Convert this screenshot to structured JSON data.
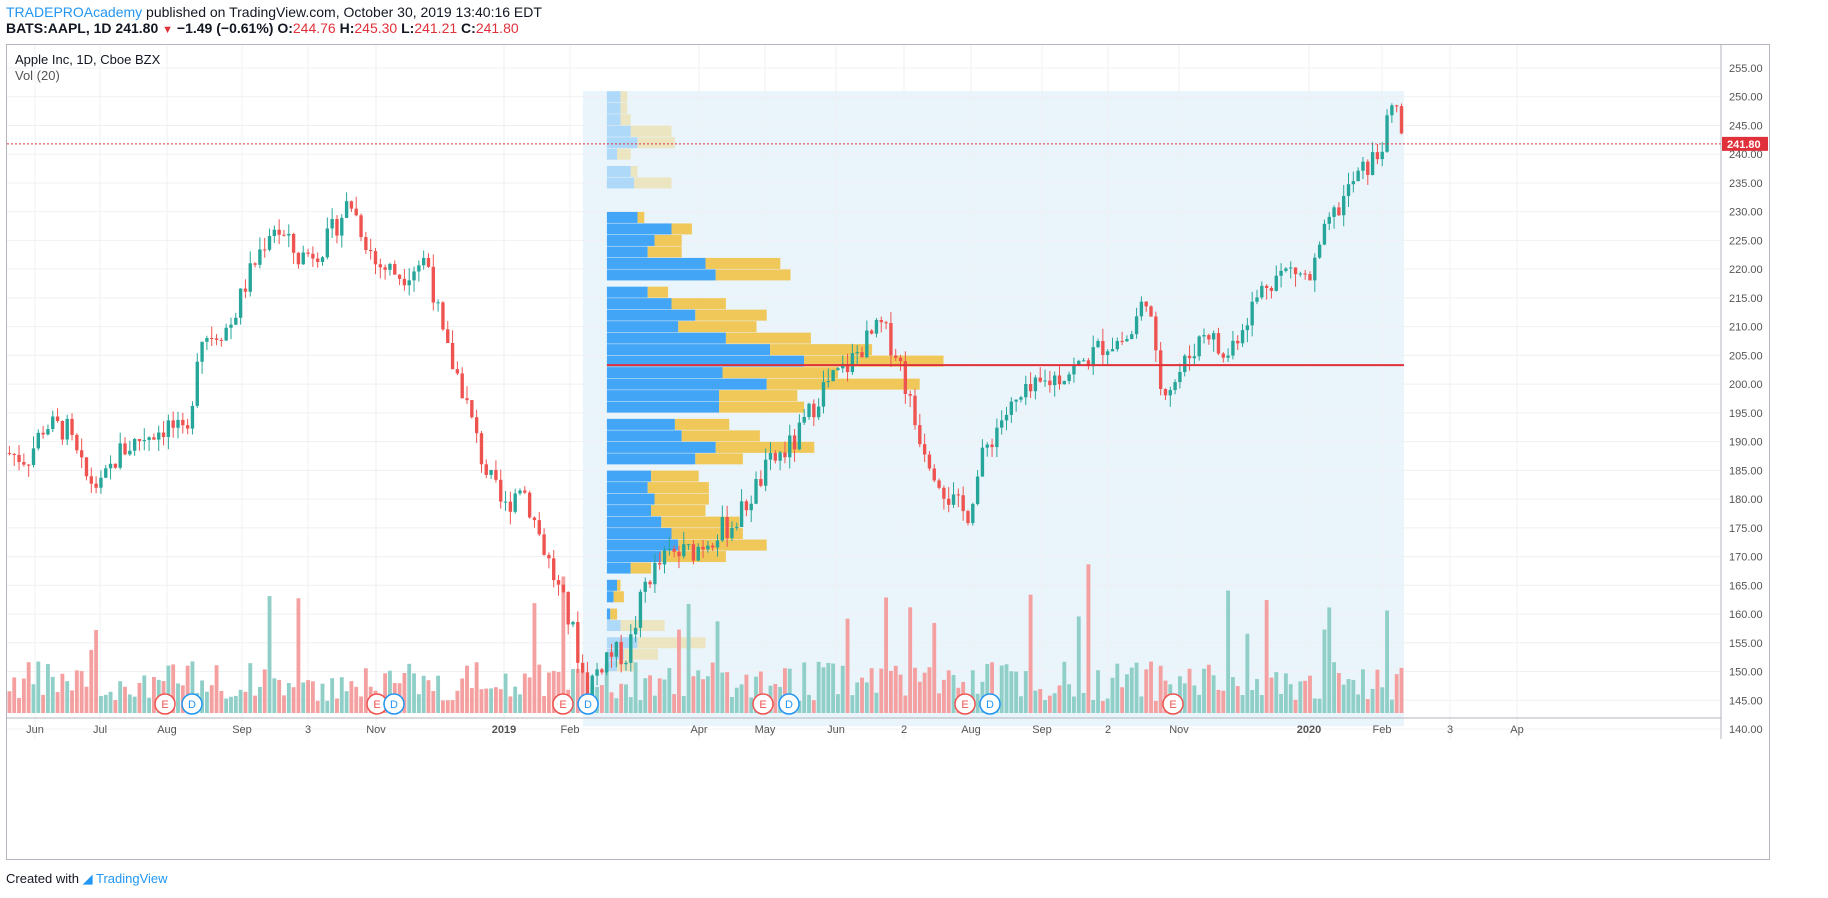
{
  "header": {
    "publisher": "TRADEPROAcademy",
    "published_text": "published on TradingView.com, October 30, 2019 13:40:16 EDT",
    "symbol": "BATS:AAPL, 1D",
    "last": "241.80",
    "change": "−1.49 (−0.61%)",
    "o_label": "O:",
    "o": "244.76",
    "h_label": "H:",
    "h": "245.30",
    "l_label": "L:",
    "l": "241.21",
    "c_label": "C:",
    "c": "241.80"
  },
  "legend": {
    "title": "Apple Inc, 1D, Cboe BZX",
    "indicator": "Vol (20)"
  },
  "footer": {
    "created_with": "Created with",
    "brand": "TradingView"
  },
  "colors": {
    "up": "#26a69a",
    "down": "#ef5350",
    "vol_up": "#8fcfc8",
    "vol_down": "#f4a0a0",
    "vp_buy": "#42a5f5",
    "vp_sell": "#f0c85a",
    "price_line": "#e0303a",
    "poc_line": "#e0303a",
    "vp_region": "#eaf4fb"
  },
  "chart_data": {
    "type": "candlestick",
    "symbol": "AAPL",
    "interval": "1D",
    "y_axis": {
      "ticks": [
        140,
        145,
        150,
        155,
        160,
        165,
        170,
        175,
        180,
        185,
        190,
        195,
        200,
        205,
        210,
        215,
        220,
        225,
        230,
        235,
        240,
        245,
        250,
        255
      ],
      "ylim": [
        138,
        256
      ]
    },
    "x_axis": {
      "labels": [
        "Jun",
        "Jul",
        "Aug",
        "Sep",
        "3",
        "Nov",
        "2019",
        "Feb",
        "Apr",
        "May",
        "Jun",
        "2",
        "Aug",
        "Sep",
        "2",
        "Nov",
        "2020",
        "Feb",
        "3",
        "Ap"
      ]
    },
    "last_price": 241.8,
    "poc_level": 203.3,
    "price_path": [
      {
        "t": 0,
        "p": 188
      },
      {
        "t": 0.012,
        "p": 187
      },
      {
        "t": 0.022,
        "p": 193
      },
      {
        "t": 0.035,
        "p": 192
      },
      {
        "t": 0.045,
        "p": 184
      },
      {
        "t": 0.055,
        "p": 182
      },
      {
        "t": 0.065,
        "p": 188
      },
      {
        "t": 0.08,
        "p": 191
      },
      {
        "t": 0.095,
        "p": 193
      },
      {
        "t": 0.105,
        "p": 190
      },
      {
        "t": 0.112,
        "p": 208
      },
      {
        "t": 0.13,
        "p": 210
      },
      {
        "t": 0.14,
        "p": 218
      },
      {
        "t": 0.155,
        "p": 228
      },
      {
        "t": 0.17,
        "p": 222
      },
      {
        "t": 0.185,
        "p": 224
      },
      {
        "t": 0.2,
        "p": 232
      },
      {
        "t": 0.215,
        "p": 221
      },
      {
        "t": 0.23,
        "p": 219
      },
      {
        "t": 0.245,
        "p": 222
      },
      {
        "t": 0.255,
        "p": 207
      },
      {
        "t": 0.265,
        "p": 200
      },
      {
        "t": 0.278,
        "p": 186
      },
      {
        "t": 0.29,
        "p": 178
      },
      {
        "t": 0.3,
        "p": 183
      },
      {
        "t": 0.315,
        "p": 170
      },
      {
        "t": 0.33,
        "p": 157
      },
      {
        "t": 0.338,
        "p": 147
      },
      {
        "t": 0.35,
        "p": 153
      },
      {
        "t": 0.362,
        "p": 153
      },
      {
        "t": 0.373,
        "p": 166
      },
      {
        "t": 0.385,
        "p": 170
      },
      {
        "t": 0.4,
        "p": 171
      },
      {
        "t": 0.413,
        "p": 174
      },
      {
        "t": 0.425,
        "p": 176
      },
      {
        "t": 0.445,
        "p": 186
      },
      {
        "t": 0.46,
        "p": 190
      },
      {
        "t": 0.475,
        "p": 199
      },
      {
        "t": 0.49,
        "p": 203
      },
      {
        "t": 0.5,
        "p": 207
      },
      {
        "t": 0.51,
        "p": 210
      },
      {
        "t": 0.52,
        "p": 205
      },
      {
        "t": 0.53,
        "p": 193
      },
      {
        "t": 0.54,
        "p": 186
      },
      {
        "t": 0.55,
        "p": 180
      },
      {
        "t": 0.56,
        "p": 177
      },
      {
        "t": 0.57,
        "p": 188
      },
      {
        "t": 0.58,
        "p": 194
      },
      {
        "t": 0.595,
        "p": 198
      },
      {
        "t": 0.61,
        "p": 201
      },
      {
        "t": 0.625,
        "p": 203
      },
      {
        "t": 0.64,
        "p": 207
      },
      {
        "t": 0.655,
        "p": 208
      },
      {
        "t": 0.665,
        "p": 216
      },
      {
        "t": 0.672,
        "p": 200
      },
      {
        "t": 0.68,
        "p": 200
      },
      {
        "t": 0.69,
        "p": 205
      },
      {
        "t": 0.7,
        "p": 210
      },
      {
        "t": 0.71,
        "p": 204
      },
      {
        "t": 0.72,
        "p": 210
      },
      {
        "t": 0.735,
        "p": 218
      },
      {
        "t": 0.75,
        "p": 220
      },
      {
        "t": 0.76,
        "p": 218
      },
      {
        "t": 0.77,
        "p": 227
      },
      {
        "t": 0.785,
        "p": 235
      },
      {
        "t": 0.8,
        "p": 240
      },
      {
        "t": 0.81,
        "p": 249
      },
      {
        "t": 0.815,
        "p": 241.8
      }
    ],
    "earnings_markers": [
      {
        "label": "E",
        "t": 0.113
      },
      {
        "label": "D",
        "t": 0.13
      },
      {
        "label": "E",
        "t": 0.26
      },
      {
        "label": "D",
        "t": 0.273
      },
      {
        "label": "E",
        "t": 0.39
      },
      {
        "label": "D",
        "t": 0.408
      },
      {
        "label": "E",
        "t": 0.53
      },
      {
        "label": "D",
        "t": 0.547
      },
      {
        "label": "E",
        "t": 0.67
      },
      {
        "label": "D",
        "t": 0.687
      },
      {
        "label": "E",
        "t": 0.815
      }
    ],
    "volume_profile": {
      "rows": [
        {
          "price": 151,
          "buy": 0.03,
          "sell": 0.05,
          "faded": true
        },
        {
          "price": 153,
          "buy": 0.05,
          "sell": 0.1,
          "faded": true
        },
        {
          "price": 155,
          "buy": 0.09,
          "sell": 0.2,
          "faded": true
        },
        {
          "price": 158,
          "buy": 0.04,
          "sell": 0.13,
          "faded": true
        },
        {
          "price": 160,
          "buy": 0.01,
          "sell": 0.02,
          "faded": false
        },
        {
          "price": 163,
          "buy": 0.02,
          "sell": 0.03,
          "faded": false
        },
        {
          "price": 165,
          "buy": 0.03,
          "sell": 0.01,
          "faded": false
        },
        {
          "price": 168,
          "buy": 0.07,
          "sell": 0.06,
          "faded": false
        },
        {
          "price": 170,
          "buy": 0.16,
          "sell": 0.19,
          "faded": false
        },
        {
          "price": 172,
          "buy": 0.21,
          "sell": 0.26,
          "faded": false
        },
        {
          "price": 174,
          "buy": 0.19,
          "sell": 0.21,
          "faded": false
        },
        {
          "price": 176,
          "buy": 0.16,
          "sell": 0.23,
          "faded": false
        },
        {
          "price": 178,
          "buy": 0.13,
          "sell": 0.16,
          "faded": false
        },
        {
          "price": 180,
          "buy": 0.14,
          "sell": 0.16,
          "faded": false
        },
        {
          "price": 182,
          "buy": 0.12,
          "sell": 0.18,
          "faded": false
        },
        {
          "price": 184,
          "buy": 0.13,
          "sell": 0.14,
          "faded": false
        },
        {
          "price": 187,
          "buy": 0.26,
          "sell": 0.14,
          "faded": false
        },
        {
          "price": 189,
          "buy": 0.32,
          "sell": 0.29,
          "faded": false
        },
        {
          "price": 191,
          "buy": 0.22,
          "sell": 0.23,
          "faded": false
        },
        {
          "price": 193,
          "buy": 0.2,
          "sell": 0.16,
          "faded": false
        },
        {
          "price": 196,
          "buy": 0.33,
          "sell": 0.25,
          "faded": false
        },
        {
          "price": 198,
          "buy": 0.33,
          "sell": 0.23,
          "faded": false
        },
        {
          "price": 200,
          "buy": 0.47,
          "sell": 0.45,
          "faded": false
        },
        {
          "price": 202,
          "buy": 0.34,
          "sell": 0.34,
          "faded": false
        },
        {
          "price": 204,
          "buy": 0.58,
          "sell": 0.41,
          "faded": false
        },
        {
          "price": 206,
          "buy": 0.48,
          "sell": 0.3,
          "faded": false
        },
        {
          "price": 208,
          "buy": 0.35,
          "sell": 0.25,
          "faded": false
        },
        {
          "price": 210,
          "buy": 0.21,
          "sell": 0.23,
          "faded": false
        },
        {
          "price": 212,
          "buy": 0.26,
          "sell": 0.21,
          "faded": false
        },
        {
          "price": 214,
          "buy": 0.19,
          "sell": 0.16,
          "faded": false
        },
        {
          "price": 216,
          "buy": 0.12,
          "sell": 0.06,
          "faded": false
        },
        {
          "price": 219,
          "buy": 0.32,
          "sell": 0.22,
          "faded": false
        },
        {
          "price": 221,
          "buy": 0.29,
          "sell": 0.22,
          "faded": false
        },
        {
          "price": 223,
          "buy": 0.12,
          "sell": 0.1,
          "faded": false
        },
        {
          "price": 225,
          "buy": 0.14,
          "sell": 0.08,
          "faded": false
        },
        {
          "price": 227,
          "buy": 0.19,
          "sell": 0.06,
          "faded": false
        },
        {
          "price": 229,
          "buy": 0.09,
          "sell": 0.02,
          "faded": false
        },
        {
          "price": 235,
          "buy": 0.08,
          "sell": 0.11,
          "faded": true
        },
        {
          "price": 237,
          "buy": 0.07,
          "sell": 0.02,
          "faded": true
        },
        {
          "price": 240,
          "buy": 0.03,
          "sell": 0.04,
          "faded": true
        },
        {
          "price": 242,
          "buy": 0.09,
          "sell": 0.11,
          "faded": true
        },
        {
          "price": 244,
          "buy": 0.07,
          "sell": 0.12,
          "faded": true
        },
        {
          "price": 246,
          "buy": 0.04,
          "sell": 0.03,
          "faded": true
        },
        {
          "price": 248,
          "buy": 0.04,
          "sell": 0.02,
          "faded": true
        },
        {
          "price": 250,
          "buy": 0.04,
          "sell": 0.02,
          "faded": true
        }
      ]
    }
  }
}
